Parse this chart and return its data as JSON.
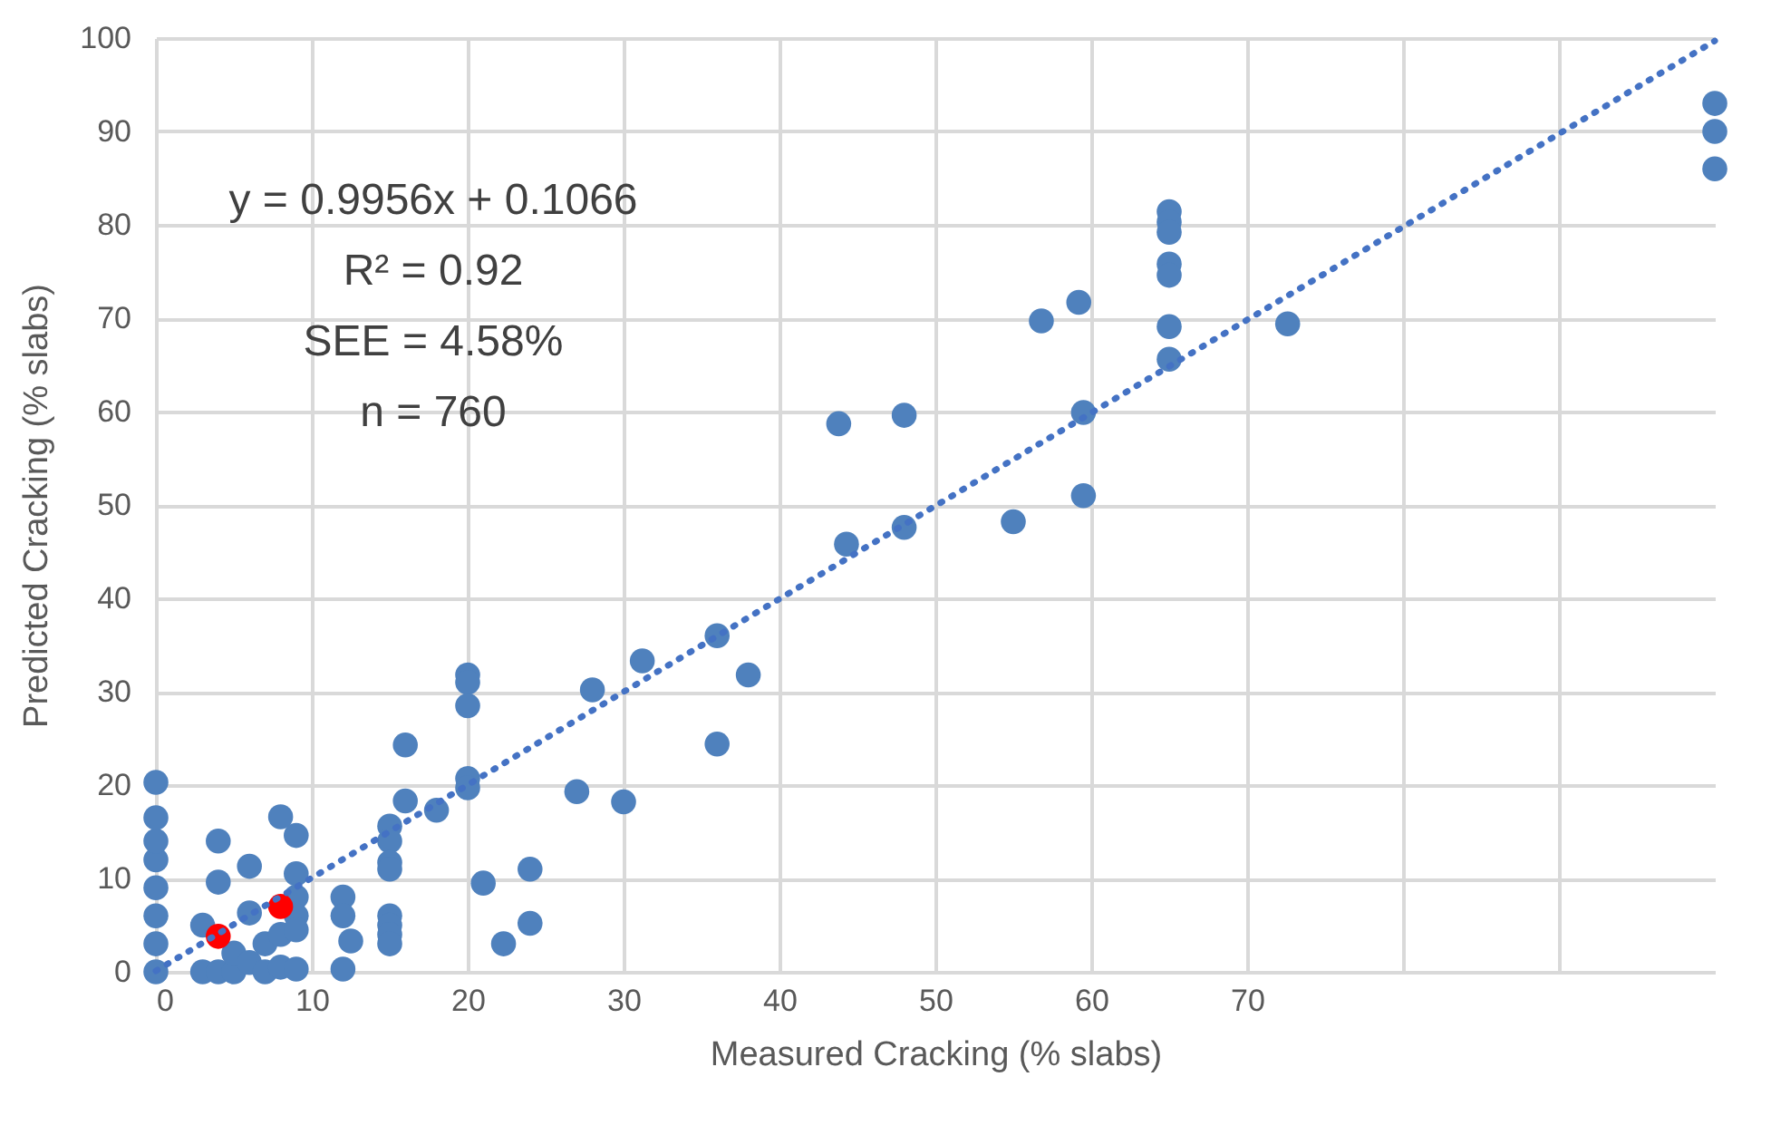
{
  "chart_data": {
    "type": "scatter",
    "xlabel": "Measured Cracking (% slabs)",
    "ylabel": "Predicted Cracking (% slabs)",
    "xlim": [
      0,
      100
    ],
    "xticks": [
      0,
      10,
      20,
      30,
      40,
      50,
      60,
      70,
      {
        "value": 80,
        "label": null
      },
      {
        "value": 90,
        "label": null
      }
    ],
    "ylim": [
      0,
      100
    ],
    "yticks": [
      0,
      10,
      20,
      30,
      40,
      50,
      60,
      70,
      80,
      90,
      100
    ],
    "grid": true,
    "marker": "circle",
    "annotations": [
      "y = 0.9956x + 0.1066",
      "R² = 0.92",
      "SEE = 4.58%",
      "n = 760"
    ],
    "series": [
      {
        "type": "scatter",
        "color": "#4f81bd",
        "x": [
          0,
          0,
          0,
          0,
          0,
          0,
          0,
          0,
          3,
          3,
          4,
          4,
          4,
          5,
          5,
          6,
          6,
          6,
          7,
          7,
          8,
          8,
          8,
          9,
          9,
          9,
          9,
          9,
          9,
          12,
          12,
          12,
          12.5,
          15,
          15,
          15,
          15,
          15,
          15,
          15,
          15,
          16,
          16,
          18,
          20,
          20,
          20,
          20,
          20,
          21,
          22.3,
          24,
          24,
          27,
          28,
          30,
          31.2,
          36,
          36,
          38,
          43.8,
          44.3,
          48,
          48,
          55,
          56.8,
          59.2,
          59.5,
          59.5,
          65,
          65,
          65,
          65,
          65,
          65,
          65,
          72.6,
          100,
          100,
          100
        ],
        "values": [
          0,
          3,
          6,
          9,
          12,
          14,
          16.5,
          20.3,
          5,
          0,
          14,
          9.6,
          0,
          0,
          2,
          6.3,
          11.3,
          1,
          0,
          3,
          16.6,
          0.5,
          4,
          14.6,
          10.5,
          8,
          6,
          4.5,
          0.3,
          8,
          6,
          0.3,
          3.3,
          15.6,
          14,
          11.7,
          11,
          6,
          5,
          4,
          3,
          24.3,
          18.3,
          17.3,
          31.8,
          31,
          28.5,
          20.7,
          19.7,
          9.5,
          3,
          11,
          5.2,
          19.3,
          30.2,
          18.2,
          33.3,
          36,
          24.4,
          31.8,
          58.7,
          45.8,
          59.6,
          47.6,
          48.2,
          69.7,
          71.7,
          59.9,
          51,
          81.4,
          80.3,
          79.2,
          75.8,
          74.6,
          69.1,
          65.6,
          69.4,
          93,
          90,
          86
        ]
      },
      {
        "type": "scatter",
        "color": "#ff0000",
        "x": [
          4,
          8
        ],
        "values": [
          3.8,
          7
        ]
      },
      {
        "type": "line",
        "color": "#4472c4",
        "line_style": "dotted",
        "marker": "none",
        "x": [
          0,
          100
        ],
        "values": [
          0.1,
          99.7
        ]
      }
    ]
  }
}
